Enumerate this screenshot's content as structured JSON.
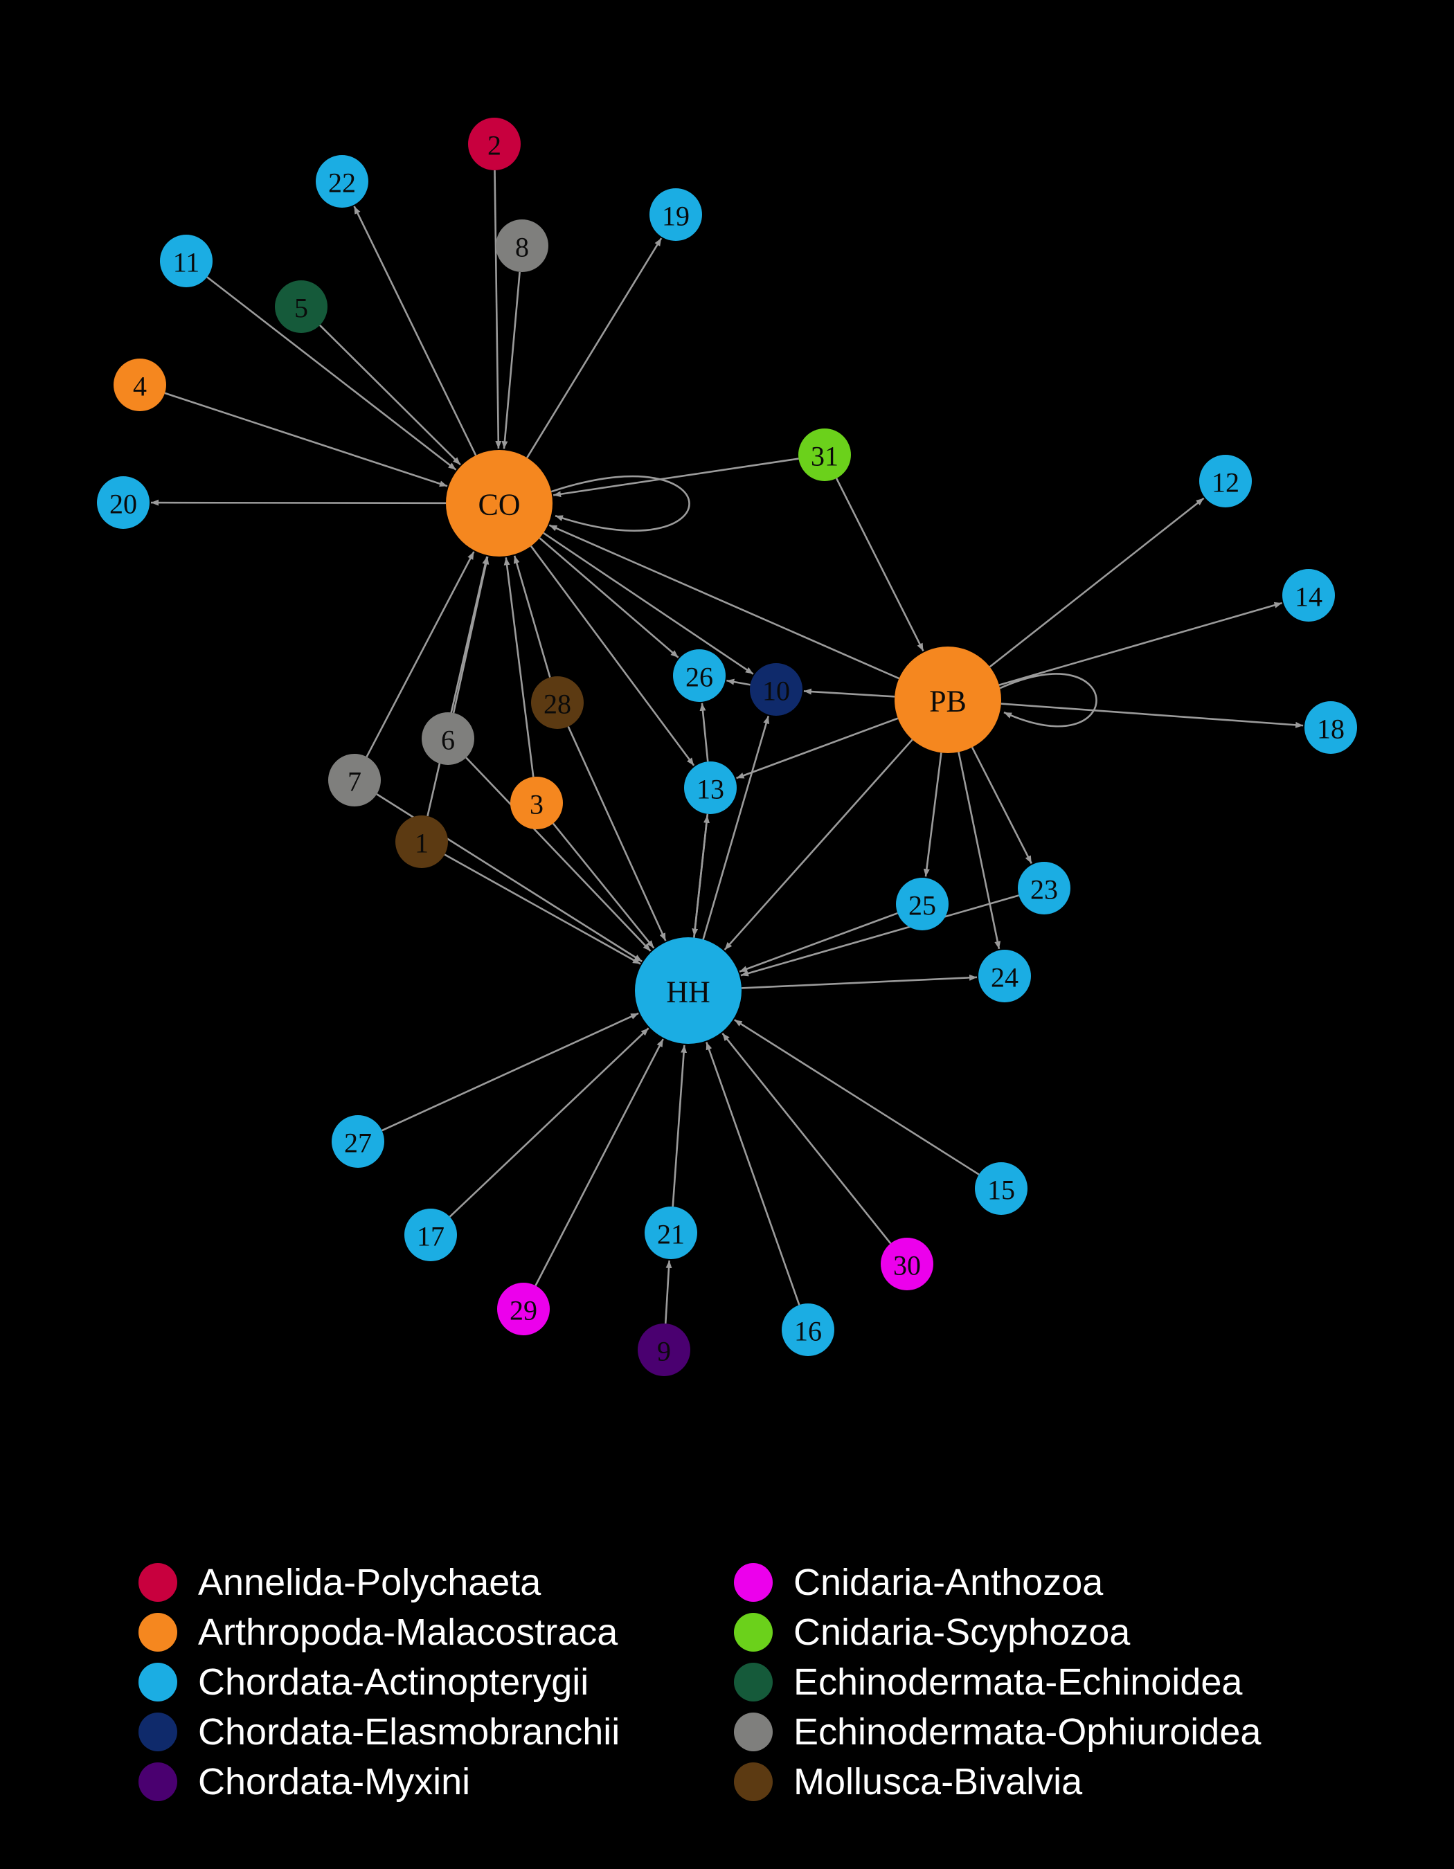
{
  "groups": [
    {
      "name": "Annelida-Polychaeta",
      "color": "#c8003e"
    },
    {
      "name": "Arthropoda-Malacostraca",
      "color": "#f5871f"
    },
    {
      "name": "Chordata-Actinopterygii",
      "color": "#1bade3"
    },
    {
      "name": "Chordata-Elasmobranchii",
      "color": "#0f2a6b"
    },
    {
      "name": "Chordata-Myxini",
      "color": "#4a0070"
    },
    {
      "name": "Cnidaria-Anthozoa",
      "color": "#ec00ec"
    },
    {
      "name": "Cnidaria-Scyphozoa",
      "color": "#6bd11b"
    },
    {
      "name": "Echinodermata-Echinoidea",
      "color": "#155a3a"
    },
    {
      "name": "Echinodermata-Ophiuroidea",
      "color": "#7f7f7d"
    },
    {
      "name": "Mollusca-Bivalvia",
      "color": "#5c3a12"
    }
  ],
  "nodes": [
    {
      "id": "CO",
      "group": 1,
      "hub": true
    },
    {
      "id": "PB",
      "group": 1,
      "hub": true
    },
    {
      "id": "HH",
      "group": 2,
      "hub": true
    },
    {
      "id": "1",
      "group": 9
    },
    {
      "id": "2",
      "group": 0
    },
    {
      "id": "3",
      "group": 1
    },
    {
      "id": "4",
      "group": 1
    },
    {
      "id": "5",
      "group": 7
    },
    {
      "id": "6",
      "group": 8
    },
    {
      "id": "7",
      "group": 8
    },
    {
      "id": "8",
      "group": 8
    },
    {
      "id": "9",
      "group": 4
    },
    {
      "id": "10",
      "group": 3
    },
    {
      "id": "11",
      "group": 2
    },
    {
      "id": "12",
      "group": 2
    },
    {
      "id": "13",
      "group": 2
    },
    {
      "id": "14",
      "group": 2
    },
    {
      "id": "15",
      "group": 2
    },
    {
      "id": "16",
      "group": 2
    },
    {
      "id": "17",
      "group": 2
    },
    {
      "id": "18",
      "group": 2
    },
    {
      "id": "19",
      "group": 2
    },
    {
      "id": "20",
      "group": 2
    },
    {
      "id": "21",
      "group": 2
    },
    {
      "id": "22",
      "group": 2
    },
    {
      "id": "23",
      "group": 2
    },
    {
      "id": "24",
      "group": 2
    },
    {
      "id": "25",
      "group": 2
    },
    {
      "id": "26",
      "group": 2
    },
    {
      "id": "27",
      "group": 2
    },
    {
      "id": "28",
      "group": 9
    },
    {
      "id": "29",
      "group": 5
    },
    {
      "id": "30",
      "group": 5
    },
    {
      "id": "31",
      "group": 6
    }
  ],
  "edges": [
    [
      "2",
      "CO"
    ],
    [
      "8",
      "CO"
    ],
    [
      "11",
      "CO"
    ],
    [
      "5",
      "CO"
    ],
    [
      "4",
      "CO"
    ],
    [
      "CO",
      "22"
    ],
    [
      "CO",
      "19"
    ],
    [
      "CO",
      "20"
    ],
    [
      "31",
      "CO"
    ],
    [
      "CO",
      "CO"
    ],
    [
      "7",
      "CO"
    ],
    [
      "6",
      "CO"
    ],
    [
      "1",
      "CO"
    ],
    [
      "3",
      "CO"
    ],
    [
      "28",
      "CO"
    ],
    [
      "PB",
      "CO"
    ],
    [
      "CO",
      "26"
    ],
    [
      "CO",
      "10"
    ],
    [
      "CO",
      "13"
    ],
    [
      "31",
      "PB"
    ],
    [
      "PB",
      "12"
    ],
    [
      "PB",
      "14"
    ],
    [
      "PB",
      "18"
    ],
    [
      "PB",
      "PB"
    ],
    [
      "PB",
      "10"
    ],
    [
      "PB",
      "13"
    ],
    [
      "PB",
      "HH"
    ],
    [
      "PB",
      "25"
    ],
    [
      "PB",
      "24"
    ],
    [
      "PB",
      "23"
    ],
    [
      "10",
      "26"
    ],
    [
      "13",
      "26"
    ],
    [
      "HH",
      "13"
    ],
    [
      "HH",
      "10"
    ],
    [
      "7",
      "HH"
    ],
    [
      "1",
      "HH"
    ],
    [
      "6",
      "HH"
    ],
    [
      "3",
      "HH"
    ],
    [
      "28",
      "HH"
    ],
    [
      "13",
      "HH"
    ],
    [
      "25",
      "HH"
    ],
    [
      "23",
      "HH"
    ],
    [
      "HH",
      "24"
    ],
    [
      "27",
      "HH"
    ],
    [
      "17",
      "HH"
    ],
    [
      "29",
      "HH"
    ],
    [
      "21",
      "HH"
    ],
    [
      "9",
      "21"
    ],
    [
      "16",
      "HH"
    ],
    [
      "30",
      "HH"
    ],
    [
      "15",
      "HH"
    ]
  ]
}
